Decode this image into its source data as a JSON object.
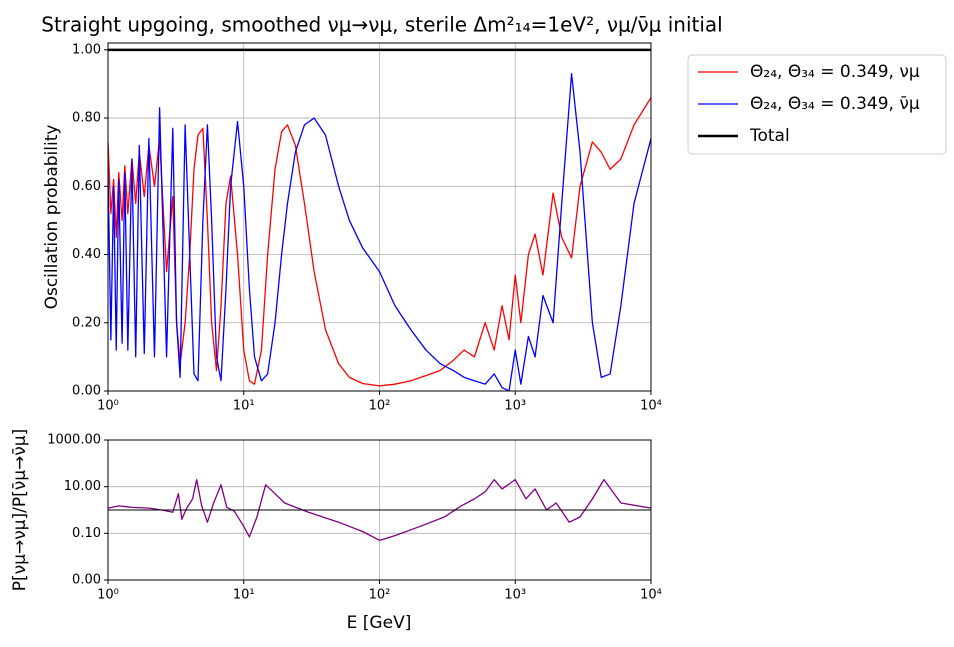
{
  "chart_data": [
    {
      "type": "line",
      "title": "Straight upgoing, smoothed νμ→νμ, sterile Δm²₁₄=1eV², νμ/ν̄μ initial",
      "y_label": "Oscillation probability",
      "xscale": "log",
      "grid": true,
      "legend": "outside upper right",
      "xlim": [
        1,
        10000
      ],
      "xticks": [
        {
          "value": 1,
          "label": "10⁰"
        },
        {
          "value": 10,
          "label": "10¹"
        },
        {
          "value": 100,
          "label": "10²"
        },
        {
          "value": 1000,
          "label": "10³"
        },
        {
          "value": 10000,
          "label": "10⁴"
        }
      ],
      "ylim": [
        0,
        1.02
      ],
      "yticks": [
        {
          "value": 0,
          "label": "0.00"
        },
        {
          "value": 0.2,
          "label": "0.20"
        },
        {
          "value": 0.4,
          "label": "0.40"
        },
        {
          "value": 0.6,
          "label": "0.60"
        },
        {
          "value": 0.8,
          "label": "0.80"
        },
        {
          "value": 1,
          "label": "1.00"
        }
      ],
      "x": [
        1,
        1.05,
        1.1,
        1.15,
        1.2,
        1.27,
        1.33,
        1.4,
        1.5,
        1.6,
        1.7,
        1.85,
        2,
        2.2,
        2.4,
        2.7,
        3,
        3.2,
        3.4,
        3.7,
        4,
        4.3,
        4.6,
        5,
        5.4,
        5.8,
        6.3,
        6.8,
        7.4,
        8,
        9,
        10,
        11,
        12,
        13.5,
        15,
        17,
        19,
        21,
        24,
        28,
        33,
        40,
        50,
        60,
        75,
        100,
        130,
        170,
        220,
        280,
        350,
        420,
        500,
        600,
        700,
        800,
        900,
        1000,
        1100,
        1250,
        1400,
        1600,
        1900,
        2200,
        2600,
        3000,
        3700,
        4300,
        5000,
        6000,
        7500,
        10000
      ],
      "series": [
        {
          "name": "Θ₂₄, Θ₃₄ = 0.349, νμ",
          "color": "#ff0000",
          "width": 1.3,
          "values": [
            0.73,
            0.52,
            0.62,
            0.45,
            0.64,
            0.5,
            0.66,
            0.52,
            0.68,
            0.55,
            0.7,
            0.57,
            0.72,
            0.6,
            0.74,
            0.35,
            0.57,
            0.2,
            0.08,
            0.2,
            0.4,
            0.65,
            0.75,
            0.77,
            0.5,
            0.2,
            0.06,
            0.25,
            0.55,
            0.63,
            0.4,
            0.12,
            0.03,
            0.02,
            0.12,
            0.4,
            0.65,
            0.76,
            0.78,
            0.72,
            0.55,
            0.35,
            0.18,
            0.08,
            0.04,
            0.022,
            0.015,
            0.02,
            0.03,
            0.045,
            0.06,
            0.09,
            0.12,
            0.1,
            0.2,
            0.12,
            0.25,
            0.15,
            0.34,
            0.2,
            0.4,
            0.46,
            0.34,
            0.58,
            0.45,
            0.39,
            0.6,
            0.73,
            0.7,
            0.65,
            0.68,
            0.78,
            0.86
          ]
        },
        {
          "name": "Θ₂₄, Θ₃₄ = 0.349, ν̄μ",
          "color": "#0000ff",
          "width": 1.3,
          "values": [
            0.65,
            0.15,
            0.6,
            0.12,
            0.62,
            0.14,
            0.64,
            0.12,
            0.68,
            0.1,
            0.72,
            0.11,
            0.74,
            0.1,
            0.83,
            0.1,
            0.77,
            0.2,
            0.04,
            0.78,
            0.4,
            0.05,
            0.03,
            0.5,
            0.78,
            0.5,
            0.1,
            0.03,
            0.3,
            0.6,
            0.79,
            0.6,
            0.3,
            0.1,
            0.03,
            0.05,
            0.2,
            0.4,
            0.55,
            0.7,
            0.78,
            0.8,
            0.75,
            0.6,
            0.5,
            0.42,
            0.35,
            0.25,
            0.18,
            0.12,
            0.08,
            0.06,
            0.04,
            0.03,
            0.02,
            0.05,
            0.01,
            0,
            0.12,
            0.02,
            0.16,
            0.1,
            0.28,
            0.2,
            0.55,
            0.93,
            0.7,
            0.2,
            0.04,
            0.05,
            0.25,
            0.55,
            0.74
          ]
        },
        {
          "name": "Total",
          "color": "#000000",
          "width": 2.5,
          "x": [
            1,
            10000
          ],
          "values": [
            1,
            1
          ]
        }
      ]
    },
    {
      "type": "line",
      "x_label": "E [GeV]",
      "y_label": "P[νμ→νμ]/P[ν̄μ→ν̄μ]",
      "xscale": "log",
      "yscale": "log",
      "grid": true,
      "xlim": [
        1,
        10000
      ],
      "xticks": [
        {
          "value": 1,
          "label": "10⁰"
        },
        {
          "value": 10,
          "label": "10¹"
        },
        {
          "value": 100,
          "label": "10²"
        },
        {
          "value": 1000,
          "label": "10³"
        },
        {
          "value": 10000,
          "label": "10⁴"
        }
      ],
      "ylim": [
        0.001,
        1000
      ],
      "yticks": [
        {
          "value": 0.001,
          "label": "0.00"
        },
        {
          "value": 0.1,
          "label": "0.10"
        },
        {
          "value": 10,
          "label": "10.00"
        },
        {
          "value": 1000,
          "label": "1000.00"
        }
      ],
      "x": [
        1,
        1.2,
        1.5,
        2,
        2.5,
        3,
        3.3,
        3.5,
        3.8,
        4.2,
        4.5,
        4.9,
        5.4,
        6,
        6.8,
        7.5,
        8.5,
        10,
        11,
        12.5,
        14.5,
        17,
        20,
        30,
        50,
        75,
        100,
        130,
        200,
        300,
        400,
        500,
        600,
        700,
        800,
        1000,
        1200,
        1400,
        1700,
        2000,
        2500,
        3000,
        3700,
        4500,
        6000,
        10000
      ],
      "series": [
        {
          "color": "#800080",
          "width": 1.3,
          "values": [
            1.2,
            1.5,
            1.3,
            1.2,
            1.0,
            0.8,
            5,
            0.4,
            1.2,
            3,
            20,
            1.5,
            0.3,
            2,
            12,
            1.3,
            0.9,
            0.2,
            0.07,
            0.5,
            12,
            5,
            2,
            0.8,
            0.3,
            0.12,
            0.05,
            0.08,
            0.2,
            0.5,
            1.5,
            3,
            6,
            20,
            8,
            20,
            3,
            8,
            1,
            2,
            0.3,
            0.5,
            3,
            20,
            2,
            1.2
          ]
        },
        {
          "color": "#000000",
          "width": 1,
          "x": [
            1,
            10000
          ],
          "values": [
            1,
            1
          ]
        }
      ]
    }
  ]
}
